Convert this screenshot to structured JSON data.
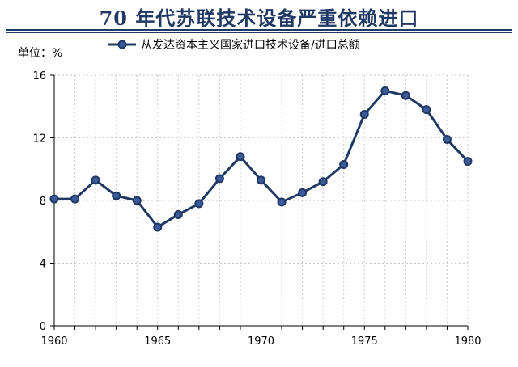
{
  "header": {
    "title": "70 年代苏联技术设备严重依赖进口",
    "unit_label": "单位：%"
  },
  "colors": {
    "line": "#1f3864",
    "marker_fill": "#3c5a9a",
    "grid": "#c9c9c9",
    "title": "#1f3864"
  },
  "chart_data": {
    "type": "line",
    "title": "70 年代苏联技术设备严重依赖进口",
    "unit": "单位：%",
    "x": [
      1960,
      1961,
      1962,
      1963,
      1964,
      1965,
      1966,
      1967,
      1968,
      1969,
      1970,
      1971,
      1972,
      1973,
      1974,
      1975,
      1976,
      1977,
      1978,
      1979,
      1980
    ],
    "series": [
      {
        "name": "从发达资本主义国家进口技术设备/进口总额",
        "values": [
          8.1,
          8.1,
          9.3,
          8.3,
          8.0,
          6.3,
          7.1,
          7.8,
          9.4,
          10.8,
          9.3,
          7.9,
          8.5,
          9.2,
          10.3,
          13.5,
          15.0,
          14.7,
          13.8,
          11.9,
          10.5
        ]
      }
    ],
    "xlim": [
      1960,
      1980
    ],
    "ylim": [
      0,
      16
    ],
    "x_ticks": [
      "1960",
      "1965",
      "1970",
      "1975",
      "1980"
    ],
    "y_ticks": [
      "0",
      "4",
      "8",
      "12",
      "16"
    ],
    "grid": true,
    "legend_position": "top"
  }
}
